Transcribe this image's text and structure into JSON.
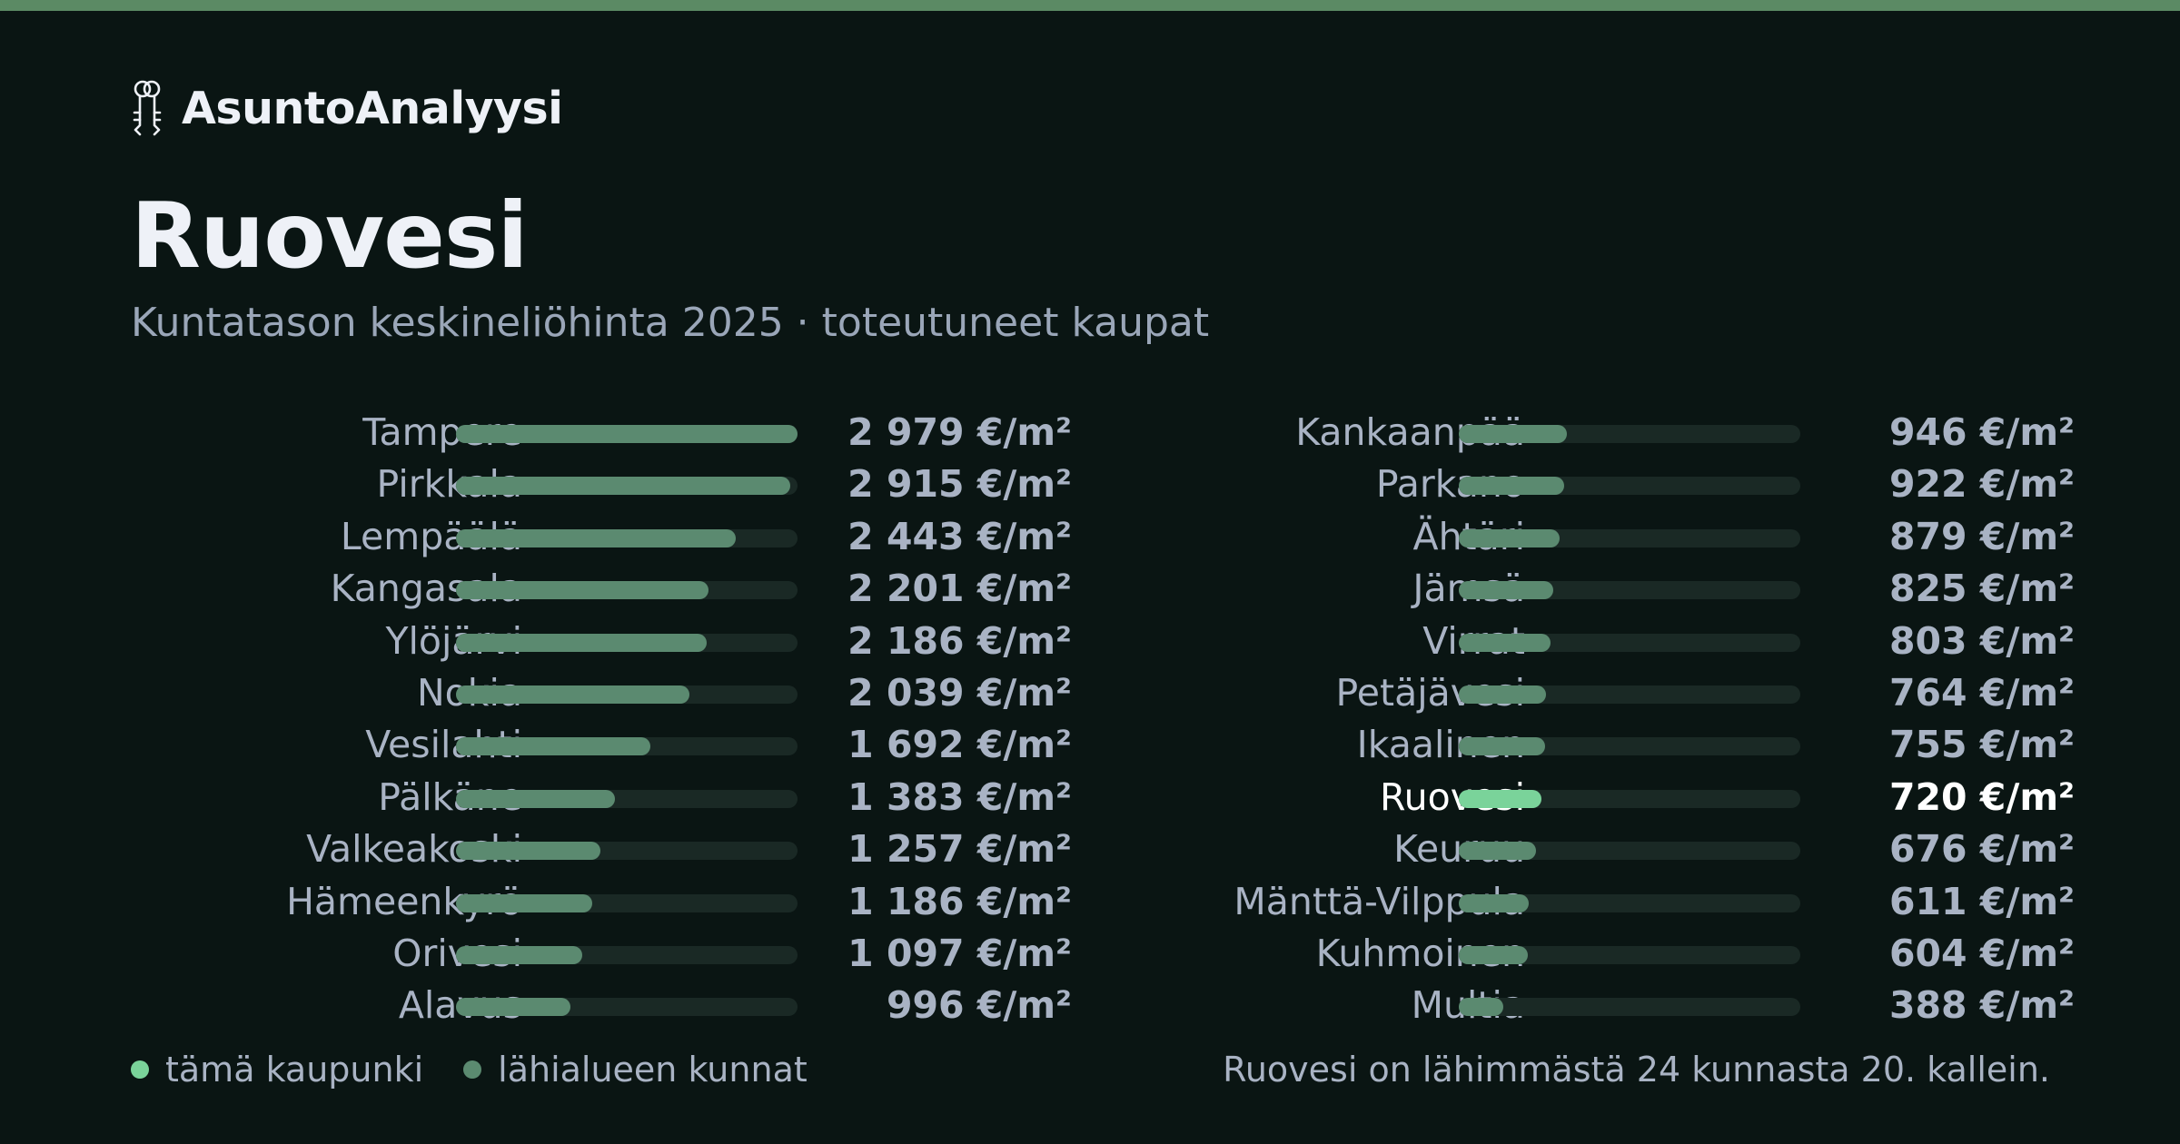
{
  "brand": {
    "name": "AsuntoAnalyysi",
    "icon": "keys-icon"
  },
  "title": "Ruovesi",
  "subtitle": "Kuntatason keskineliöhinta 2025 · toteutuneet kaupat",
  "colors": {
    "accent": "#7ad39a",
    "bar": "#5b8a70",
    "track": "#1a2925",
    "background": "#0a1513",
    "top_bar": "#5b8a64"
  },
  "chart_data": {
    "type": "bar",
    "orientation": "horizontal",
    "unit": "€/m²",
    "highlight": "Ruovesi",
    "items": [
      {
        "name": "Tampere",
        "value": 2979,
        "label": "2 979 €/m²"
      },
      {
        "name": "Pirkkala",
        "value": 2915,
        "label": "2 915 €/m²"
      },
      {
        "name": "Lempäälä",
        "value": 2443,
        "label": "2 443 €/m²"
      },
      {
        "name": "Kangasala",
        "value": 2201,
        "label": "2 201 €/m²"
      },
      {
        "name": "Ylöjärvi",
        "value": 2186,
        "label": "2 186 €/m²"
      },
      {
        "name": "Nokia",
        "value": 2039,
        "label": "2 039 €/m²"
      },
      {
        "name": "Vesilahti",
        "value": 1692,
        "label": "1 692 €/m²"
      },
      {
        "name": "Pälkäne",
        "value": 1383,
        "label": "1 383 €/m²"
      },
      {
        "name": "Valkeakoski",
        "value": 1257,
        "label": "1 257 €/m²"
      },
      {
        "name": "Hämeenkyrö",
        "value": 1186,
        "label": "1 186 €/m²"
      },
      {
        "name": "Orivesi",
        "value": 1097,
        "label": "1 097 €/m²"
      },
      {
        "name": "Alavus",
        "value": 996,
        "label": "996 €/m²"
      },
      {
        "name": "Kankaanpää",
        "value": 946,
        "label": "946 €/m²"
      },
      {
        "name": "Parkano",
        "value": 922,
        "label": "922 €/m²"
      },
      {
        "name": "Ähtäri",
        "value": 879,
        "label": "879 €/m²"
      },
      {
        "name": "Jämsä",
        "value": 825,
        "label": "825 €/m²"
      },
      {
        "name": "Virrat",
        "value": 803,
        "label": "803 €/m²"
      },
      {
        "name": "Petäjävesi",
        "value": 764,
        "label": "764 €/m²"
      },
      {
        "name": "Ikaalinen",
        "value": 755,
        "label": "755 €/m²"
      },
      {
        "name": "Ruovesi",
        "value": 720,
        "label": "720 €/m²"
      },
      {
        "name": "Keuruu",
        "value": 676,
        "label": "676 €/m²"
      },
      {
        "name": "Mänttä-Vilppula",
        "value": 611,
        "label": "611 €/m²"
      },
      {
        "name": "Kuhmoinen",
        "value": 604,
        "label": "604 €/m²"
      },
      {
        "name": "Multia",
        "value": 388,
        "label": "388 €/m²"
      }
    ],
    "max": 2979
  },
  "legend": {
    "this_city": "tämä kaupunki",
    "nearby": "lähialueen kunnat"
  },
  "footnote": "Ruovesi on lähimmästä 24 kunnasta 20. kallein."
}
